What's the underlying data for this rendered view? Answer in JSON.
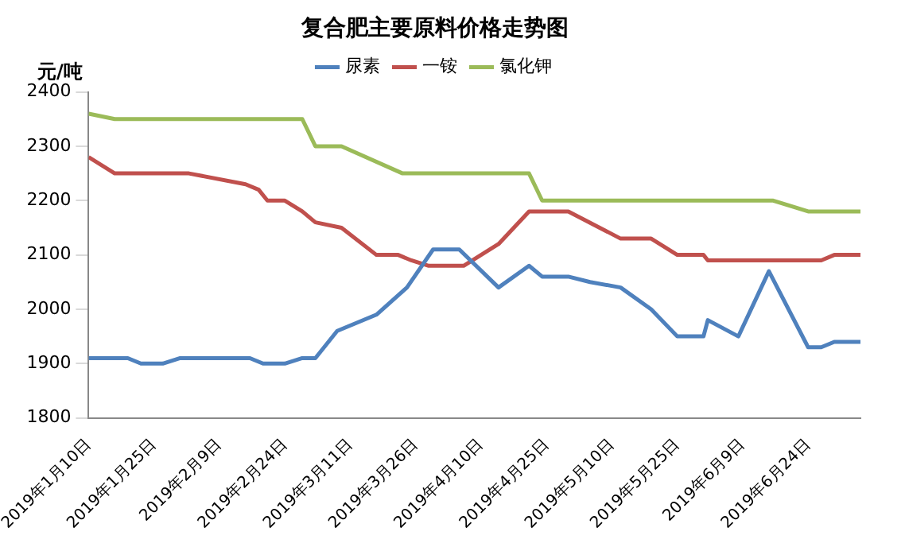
{
  "chart_data": {
    "type": "line",
    "title": "复合肥主要原料价格走势图",
    "ylabel": "元/吨",
    "xlim": [
      "2019-01-10",
      "2019-07-06"
    ],
    "xticks": [
      {
        "value": "2019-01-10",
        "label": "2019年1月10日"
      },
      {
        "value": "2019-01-25",
        "label": "2019年1月25日"
      },
      {
        "value": "2019-02-09",
        "label": "2019年2月9日"
      },
      {
        "value": "2019-02-24",
        "label": "2019年2月24日"
      },
      {
        "value": "2019-03-11",
        "label": "2019年3月11日"
      },
      {
        "value": "2019-03-26",
        "label": "2019年3月26日"
      },
      {
        "value": "2019-04-10",
        "label": "2019年4月10日"
      },
      {
        "value": "2019-04-25",
        "label": "2019年4月25日"
      },
      {
        "value": "2019-05-10",
        "label": "2019年5月10日"
      },
      {
        "value": "2019-05-25",
        "label": "2019年5月25日"
      },
      {
        "value": "2019-06-09",
        "label": "2019年6月9日"
      },
      {
        "value": "2019-06-24",
        "label": "2019年6月24日"
      }
    ],
    "ylim": [
      1800,
      2400
    ],
    "yticks": [
      1800,
      1900,
      2000,
      2100,
      2200,
      2300,
      2400
    ],
    "grid": false,
    "legend": "top",
    "marker": "none",
    "line_style": "solid",
    "series": [
      {
        "name": "尿素",
        "color": "#4f81bd",
        "x": [
          "2019-01-10",
          "2019-01-19",
          "2019-01-22",
          "2019-01-27",
          "2019-01-31",
          "2019-02-16",
          "2019-02-19",
          "2019-02-24",
          "2019-02-28",
          "2019-03-03",
          "2019-03-08",
          "2019-03-17",
          "2019-03-24",
          "2019-03-30",
          "2019-04-05",
          "2019-04-14",
          "2019-04-21",
          "2019-04-24",
          "2019-04-30",
          "2019-05-05",
          "2019-05-12",
          "2019-05-19",
          "2019-05-25",
          "2019-05-31",
          "2019-06-01",
          "2019-06-08",
          "2019-06-15",
          "2019-06-24",
          "2019-06-27",
          "2019-06-30",
          "2019-07-06"
        ],
        "values": [
          1910,
          1910,
          1900,
          1900,
          1910,
          1910,
          1900,
          1900,
          1910,
          1910,
          1960,
          1990,
          2040,
          2110,
          2110,
          2040,
          2080,
          2060,
          2060,
          2050,
          2040,
          2000,
          1950,
          1950,
          1980,
          1950,
          2070,
          1930,
          1930,
          1940,
          1940
        ]
      },
      {
        "name": "一铵",
        "color": "#c0504d",
        "x": [
          "2019-01-10",
          "2019-01-16",
          "2019-02-02",
          "2019-02-15",
          "2019-02-18",
          "2019-02-20",
          "2019-02-24",
          "2019-02-28",
          "2019-03-03",
          "2019-03-09",
          "2019-03-17",
          "2019-03-22",
          "2019-03-25",
          "2019-03-29",
          "2019-04-06",
          "2019-04-14",
          "2019-04-21",
          "2019-04-30",
          "2019-05-12",
          "2019-05-19",
          "2019-05-25",
          "2019-05-31",
          "2019-06-01",
          "2019-06-27",
          "2019-06-30",
          "2019-07-06"
        ],
        "values": [
          2280,
          2250,
          2250,
          2230,
          2220,
          2200,
          2200,
          2180,
          2160,
          2150,
          2100,
          2100,
          2090,
          2080,
          2080,
          2120,
          2180,
          2180,
          2130,
          2130,
          2100,
          2100,
          2090,
          2090,
          2100,
          2100
        ]
      },
      {
        "name": "氯化钾",
        "color": "#9bbb59",
        "x": [
          "2019-01-10",
          "2019-01-16",
          "2019-02-28",
          "2019-03-03",
          "2019-03-09",
          "2019-03-23",
          "2019-04-21",
          "2019-04-24",
          "2019-06-16",
          "2019-06-24",
          "2019-07-06"
        ],
        "values": [
          2360,
          2350,
          2350,
          2300,
          2300,
          2250,
          2250,
          2200,
          2200,
          2180,
          2180
        ]
      }
    ]
  }
}
